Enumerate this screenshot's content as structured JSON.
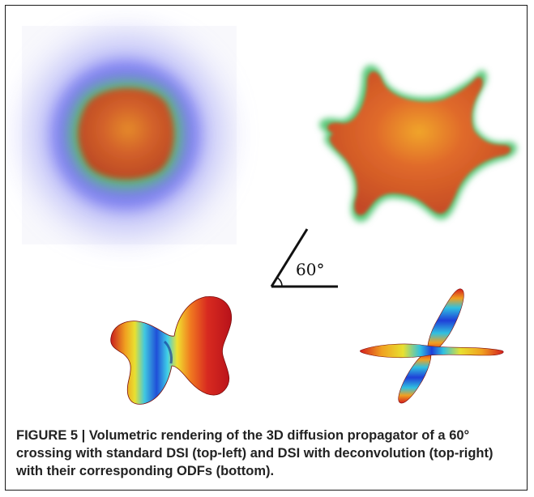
{
  "figure": {
    "panels": [
      {
        "name": "propagator-standard-dsi",
        "description_visible": false
      },
      {
        "name": "propagator-dsi-deconvolution",
        "description_visible": false
      },
      {
        "name": "odf-standard-dsi",
        "description_visible": false
      },
      {
        "name": "odf-dsi-deconvolution",
        "description_visible": false
      }
    ],
    "angle_label": "60°",
    "colors": {
      "glow_blue": "#6a6af0",
      "glow_green": "#5ec87a",
      "core_orange": "#d9632a",
      "core_red": "#b8401e",
      "frame": "#1a1a1a"
    }
  },
  "caption": {
    "label": "FIGURE 5 | ",
    "text": "Volumetric rendering of the 3D diffusion propagator of a 60° crossing with standard DSI (top-left) and DSI with deconvolution (top-right) with their corresponding ODFs (bottom)."
  }
}
